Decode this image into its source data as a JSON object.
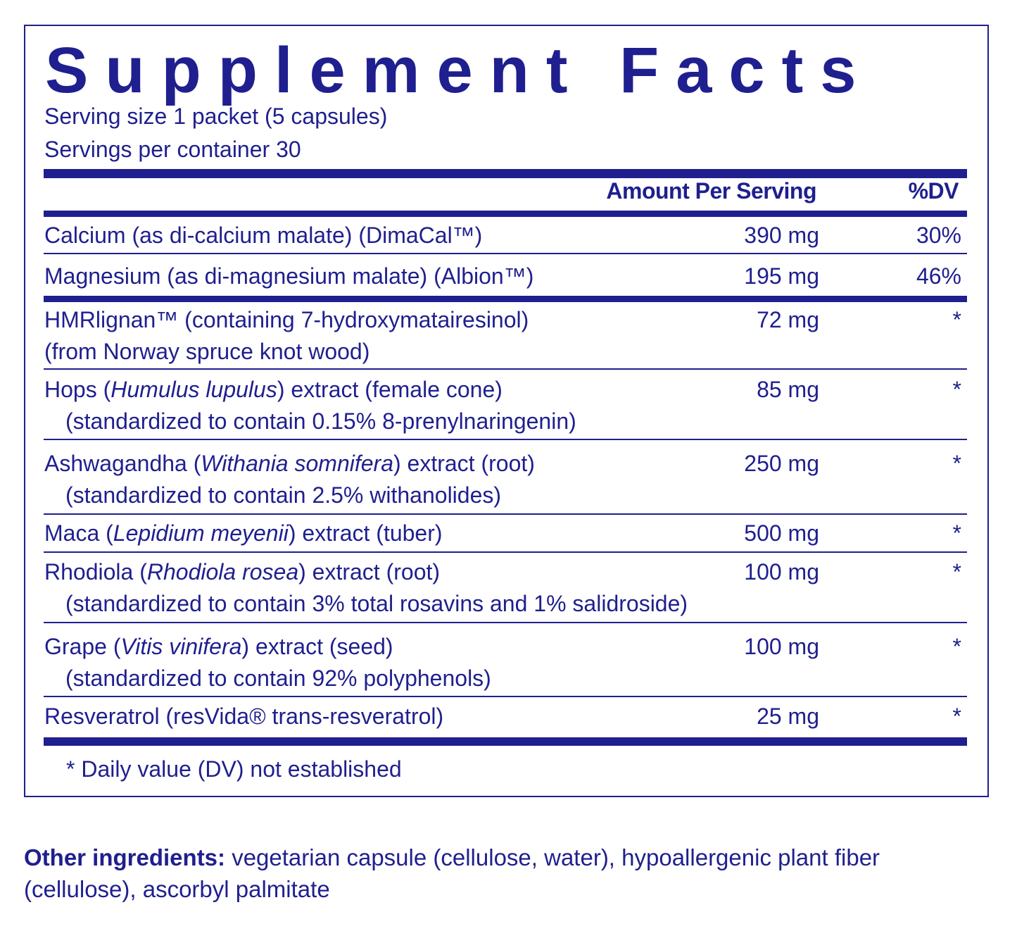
{
  "title": "Supplement Facts",
  "serving_size": "Serving size 1 packet (5 capsules)",
  "servings_per_container": "Servings per container 30",
  "header": {
    "amount": "Amount Per Serving",
    "dv": "%DV"
  },
  "rows": [
    {
      "pre": "Calcium (as di-calcium malate) (DimaCal™)",
      "ital": "",
      "post": "",
      "line2": "",
      "amount": "390 mg",
      "dv": "30%"
    },
    {
      "pre": "Magnesium (as di-magnesium malate) (Albion™)",
      "ital": "",
      "post": "",
      "line2": "",
      "amount": "195 mg",
      "dv": "46%"
    },
    {
      "pre": "HMRlignan™ (containing 7-hydroxymatairesinol)",
      "ital": "",
      "post": "",
      "line2": "(from Norway spruce knot wood)",
      "amount": "72 mg",
      "dv": "*"
    },
    {
      "pre": "Hops (",
      "ital": "Humulus lupulus",
      "post": ") extract (female cone)",
      "line2": "(standardized to contain 0.15% 8-prenylnaringenin)",
      "amount": "85 mg",
      "dv": "*"
    },
    {
      "pre": "Ashwagandha (",
      "ital": "Withania somnifera",
      "post": ") extract (root)",
      "line2": "(standardized to contain 2.5% withanolides)",
      "amount": "250 mg",
      "dv": "*"
    },
    {
      "pre": "Maca (",
      "ital": "Lepidium meyenii",
      "post": ") extract (tuber)",
      "line2": "",
      "amount": "500 mg",
      "dv": "*"
    },
    {
      "pre": "Rhodiola (",
      "ital": "Rhodiola rosea",
      "post": ") extract (root)",
      "line2": "(standardized to contain 3% total rosavins and 1% salidroside)",
      "amount": "100 mg",
      "dv": "*"
    },
    {
      "pre": "Grape (",
      "ital": "Vitis vinifera",
      "post": ") extract (seed)",
      "line2": "(standardized to contain 92% polyphenols)",
      "amount": "100 mg",
      "dv": "*"
    },
    {
      "pre": "Resveratrol (resVida® trans-resveratrol)",
      "ital": "",
      "post": "",
      "line2": "",
      "amount": "25 mg",
      "dv": "*"
    }
  ],
  "footnote": "* Daily value (DV) not established",
  "other_ingredients": {
    "label": "Other ingredients:",
    "text": " vegetarian capsule (cellulose, water), hypoallergenic plant fiber (cellulose), ascorbyl palmitate"
  }
}
